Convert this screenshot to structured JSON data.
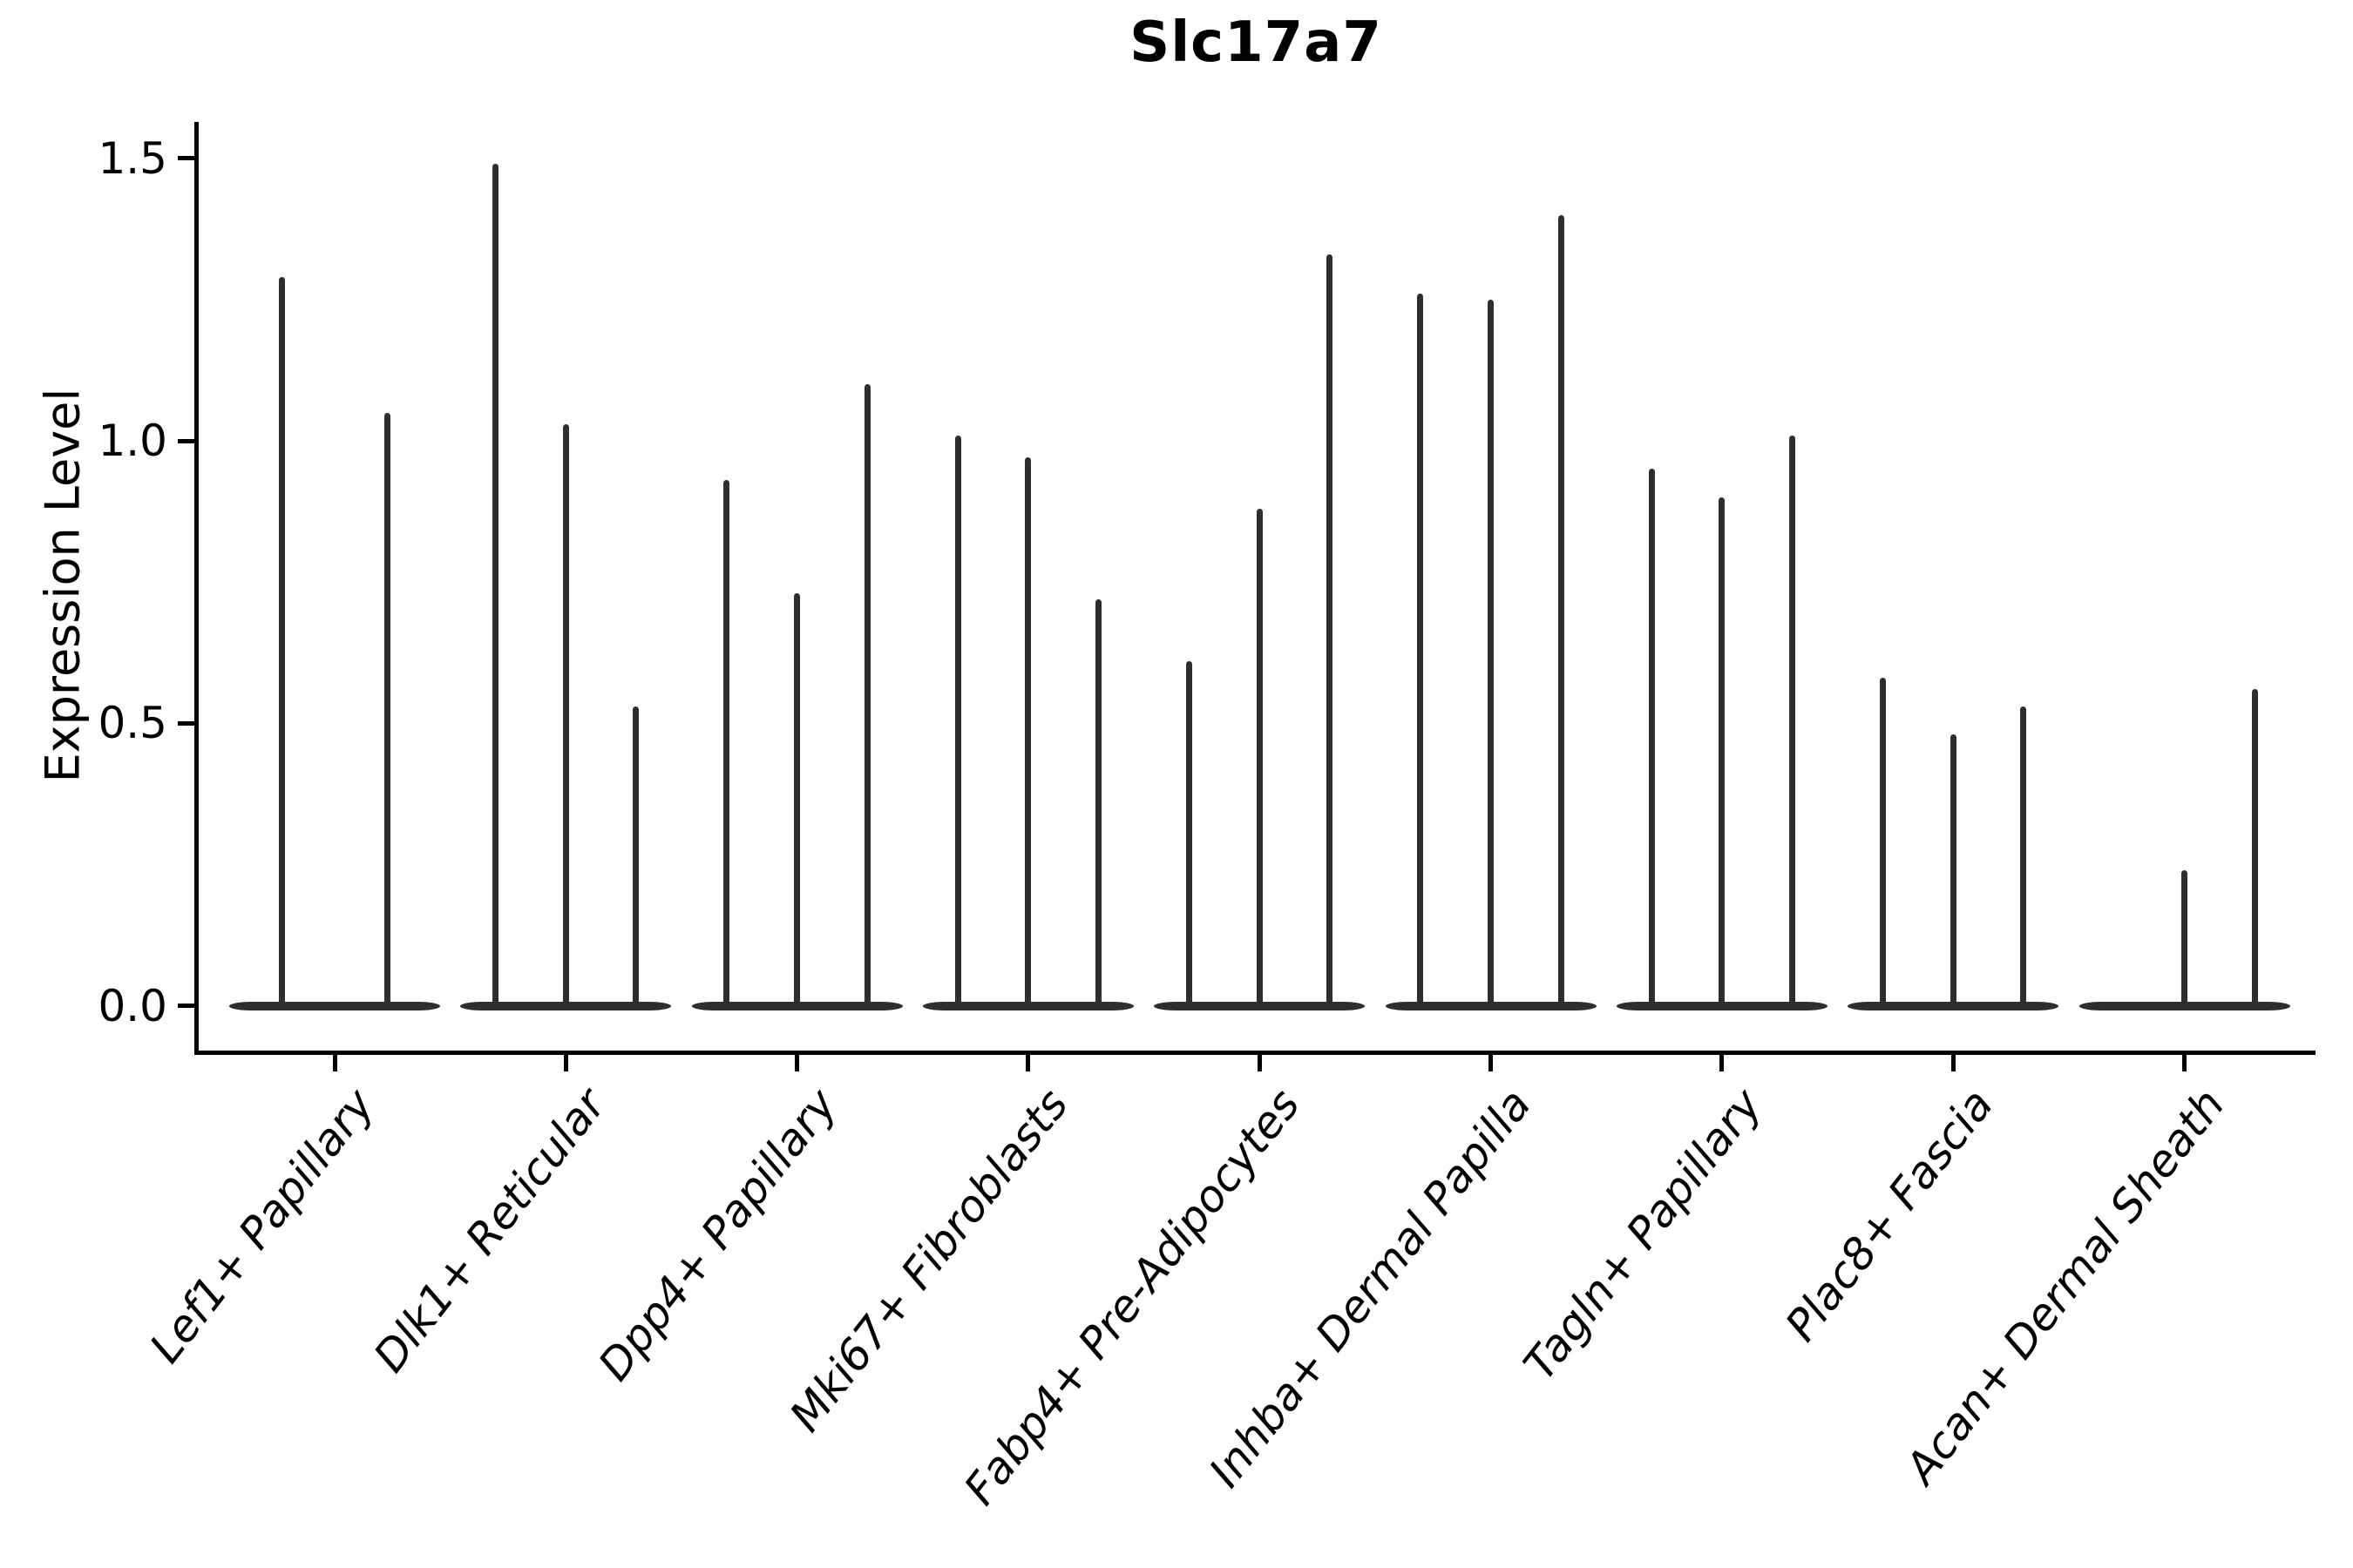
{
  "title": "Slc17a7",
  "y_axis": {
    "label": "Expression Level",
    "tick_labels": [
      "1.5",
      "1.0",
      "0.5",
      "0.0"
    ]
  },
  "chart_data": {
    "type": "violin",
    "title": "Slc17a7",
    "xlabel": "",
    "ylabel": "Expression Level",
    "ylim": [
      -0.08,
      1.56
    ],
    "yticks": [
      0.0,
      0.5,
      1.0,
      1.5
    ],
    "grid": false,
    "legend": "none",
    "violin_color": "#2e2e2e",
    "axis_color": "#000000",
    "categories": [
      "Lef1+ Papillary",
      "Dlk1+ Reticular",
      "Dpp4+ Papillary",
      "Mki67+ Fibroblasts",
      "Fabp4+ Pre-Adipocytes",
      "Inhba+ Dermal Papilla",
      "Tagln+ Papillary",
      "Plac8+ Fascia",
      "Acan+ Dermal Sheath"
    ],
    "groups": [
      {
        "category": "Lef1+ Papillary",
        "violin_maxima": [
          1.29,
          1.05
        ]
      },
      {
        "category": "Dlk1+ Reticular",
        "violin_maxima": [
          1.49,
          1.03,
          0.53
        ]
      },
      {
        "category": "Dpp4+ Papillary",
        "violin_maxima": [
          0.93,
          0.73,
          1.1
        ]
      },
      {
        "category": "Mki67+ Fibroblasts",
        "violin_maxima": [
          1.01,
          0.97,
          0.72
        ]
      },
      {
        "category": "Fabp4+ Pre-Adipocytes",
        "violin_maxima": [
          0.61,
          0.88,
          1.33
        ]
      },
      {
        "category": "Inhba+ Dermal Papilla",
        "violin_maxima": [
          1.26,
          1.25,
          1.4
        ]
      },
      {
        "category": "Tagln+ Papillary",
        "violin_maxima": [
          0.95,
          0.9,
          1.01
        ]
      },
      {
        "category": "Plac8+ Fascia",
        "violin_maxima": [
          0.58,
          0.48,
          0.53
        ]
      },
      {
        "category": "Acan+ Dermal Sheath",
        "violin_maxima": [
          0.0,
          0.24,
          0.56
        ]
      }
    ]
  }
}
